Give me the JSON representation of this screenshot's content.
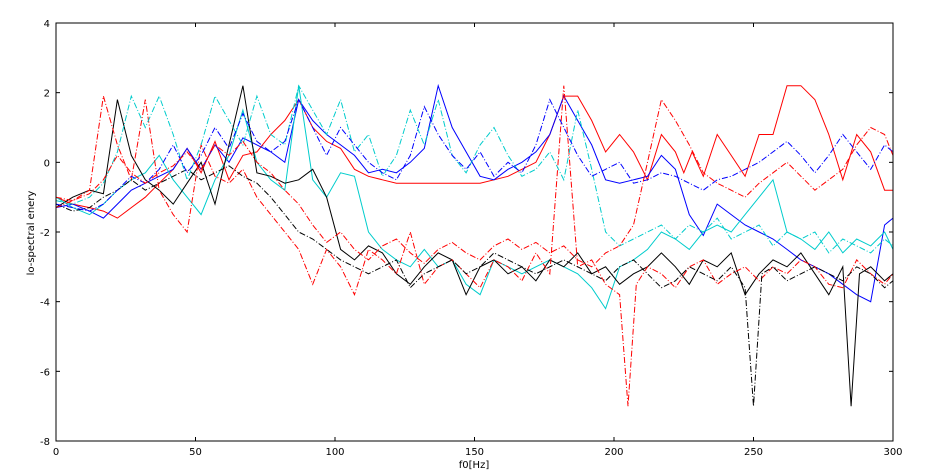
{
  "chart_data": {
    "type": "line",
    "title": "",
    "xlabel": "f0[Hz]",
    "ylabel": "lo-spectral enery",
    "xlim": [
      0,
      300
    ],
    "ylim": [
      -8,
      4
    ],
    "xticks": [
      0,
      50,
      100,
      150,
      200,
      250,
      300
    ],
    "yticks": [
      4,
      2,
      0,
      -2,
      -4,
      -6,
      -8
    ],
    "grid": false,
    "legend": "none",
    "series": [
      {
        "color": "#ff0000",
        "style": "solid",
        "x": [
          0,
          6,
          12,
          17,
          22,
          27,
          32,
          37,
          42,
          47,
          52,
          57,
          62,
          67,
          72,
          77,
          82,
          87,
          92,
          97,
          102,
          107,
          112,
          117,
          122,
          127,
          132,
          137,
          142,
          147,
          152,
          157,
          162,
          167,
          172,
          177,
          182,
          187,
          192,
          197,
          202,
          207,
          212,
          217,
          222,
          225,
          228,
          232,
          237,
          242,
          247,
          252,
          257,
          262,
          267,
          272,
          277,
          282,
          287,
          292,
          297,
          300
        ],
        "values": [
          -1.0,
          -1.2,
          -1.3,
          -1.4,
          -1.6,
          -1.3,
          -1.0,
          -0.6,
          -0.2,
          0.4,
          -0.3,
          0.6,
          -0.5,
          0.2,
          0.3,
          0.8,
          1.2,
          1.8,
          1.0,
          0.6,
          0.4,
          -0.2,
          -0.4,
          -0.5,
          -0.6,
          -0.6,
          -0.6,
          -0.6,
          -0.6,
          -0.6,
          -0.6,
          -0.5,
          -0.4,
          -0.2,
          0.0,
          0.8,
          1.9,
          1.9,
          1.2,
          0.3,
          0.8,
          0.3,
          -0.5,
          0.8,
          0.3,
          -0.3,
          0.3,
          -0.4,
          0.8,
          0.2,
          -0.4,
          0.8,
          0.8,
          2.2,
          2.2,
          1.8,
          0.8,
          -0.5,
          0.8,
          0.3,
          -0.8,
          -0.8
        ]
      },
      {
        "color": "#0000ff",
        "style": "solid",
        "x": [
          0,
          6,
          12,
          17,
          22,
          27,
          32,
          37,
          42,
          47,
          52,
          57,
          62,
          67,
          72,
          77,
          82,
          87,
          92,
          97,
          102,
          107,
          112,
          117,
          122,
          127,
          132,
          137,
          142,
          147,
          152,
          157,
          162,
          167,
          172,
          177,
          182,
          187,
          192,
          197,
          202,
          207,
          212,
          217,
          222,
          227,
          232,
          237,
          242,
          247,
          252,
          257,
          262,
          267,
          272,
          277,
          282,
          287,
          292,
          297,
          300
        ],
        "values": [
          -1.3,
          -1.2,
          -1.4,
          -1.6,
          -1.2,
          -0.8,
          -0.6,
          -0.4,
          -0.2,
          0.4,
          -0.2,
          0.5,
          0.0,
          0.7,
          0.5,
          0.3,
          0.0,
          1.8,
          1.2,
          0.8,
          0.5,
          0.2,
          -0.3,
          -0.2,
          -0.3,
          0.0,
          0.4,
          2.2,
          1.0,
          0.3,
          -0.4,
          -0.5,
          -0.2,
          0.0,
          0.3,
          0.8,
          1.9,
          1.2,
          0.5,
          -0.5,
          -0.6,
          -0.5,
          -0.4,
          0.2,
          -0.2,
          -1.5,
          -2.1,
          -1.2,
          -1.5,
          -1.8,
          -2.0,
          -2.2,
          -2.5,
          -2.8,
          -3.0,
          -3.2,
          -3.5,
          -3.8,
          -4.0,
          -1.8,
          -1.6
        ]
      },
      {
        "color": "#00cccc",
        "style": "solid",
        "x": [
          0,
          6,
          12,
          17,
          22,
          27,
          32,
          37,
          42,
          47,
          52,
          57,
          62,
          67,
          72,
          77,
          82,
          87,
          92,
          97,
          102,
          107,
          112,
          117,
          122,
          127,
          132,
          137,
          142,
          147,
          152,
          157,
          162,
          167,
          172,
          177,
          182,
          187,
          192,
          197,
          202,
          207,
          212,
          217,
          222,
          227,
          232,
          237,
          242,
          247,
          252,
          257,
          262,
          267,
          272,
          277,
          282,
          287,
          292,
          297,
          300
        ],
        "values": [
          -1.0,
          -1.3,
          -1.5,
          -1.2,
          -0.8,
          -0.5,
          -0.3,
          0.2,
          -0.5,
          -1.0,
          -1.5,
          -0.5,
          0.2,
          1.5,
          0.0,
          -0.5,
          -0.8,
          2.2,
          -0.5,
          -1.0,
          -0.3,
          -0.4,
          -2.0,
          -2.5,
          -2.8,
          -3.0,
          -2.5,
          -3.0,
          -2.8,
          -3.5,
          -3.8,
          -2.8,
          -3.0,
          -3.2,
          -3.0,
          -2.8,
          -3.0,
          -3.2,
          -3.6,
          -4.2,
          -3.0,
          -2.8,
          -2.5,
          -2.0,
          -2.2,
          -2.5,
          -2.0,
          -1.8,
          -2.0,
          -1.5,
          -1.0,
          -0.5,
          -2.0,
          -2.2,
          -2.5,
          -2.0,
          -2.6,
          -2.2,
          -2.4,
          -2.0,
          -2.5
        ]
      },
      {
        "color": "#000000",
        "style": "solid",
        "x": [
          0,
          6,
          12,
          17,
          22,
          27,
          32,
          37,
          42,
          47,
          52,
          57,
          62,
          67,
          72,
          77,
          82,
          87,
          92,
          97,
          102,
          107,
          112,
          117,
          122,
          127,
          132,
          137,
          142,
          147,
          152,
          157,
          162,
          167,
          172,
          177,
          182,
          187,
          192,
          197,
          202,
          207,
          212,
          217,
          222,
          227,
          232,
          237,
          242,
          247,
          252,
          257,
          262,
          267,
          272,
          277,
          282,
          285,
          288,
          292,
          297,
          300
        ],
        "values": [
          -1.3,
          -1.0,
          -0.8,
          -0.9,
          1.8,
          0.2,
          -0.5,
          -0.8,
          -1.2,
          -0.6,
          0.0,
          -1.2,
          0.5,
          2.2,
          -0.3,
          -0.4,
          -0.6,
          -0.5,
          -0.2,
          -1.0,
          -2.5,
          -2.8,
          -2.4,
          -2.6,
          -3.2,
          -3.5,
          -3.0,
          -2.6,
          -2.8,
          -3.8,
          -3.0,
          -2.8,
          -3.2,
          -3.0,
          -3.4,
          -2.8,
          -3.0,
          -2.6,
          -3.2,
          -3.0,
          -3.5,
          -3.2,
          -3.0,
          -2.6,
          -3.0,
          -3.5,
          -2.8,
          -3.0,
          -2.6,
          -3.8,
          -3.2,
          -2.8,
          -3.0,
          -2.6,
          -3.2,
          -3.8,
          -3.0,
          -7.0,
          -3.2,
          -3.0,
          -3.4,
          -3.2
        ]
      },
      {
        "color": "#ff0000",
        "style": "dashdot",
        "x": [
          0,
          6,
          12,
          17,
          22,
          27,
          32,
          37,
          42,
          47,
          52,
          57,
          62,
          67,
          72,
          77,
          82,
          87,
          92,
          97,
          102,
          107,
          112,
          117,
          122,
          127,
          132,
          137,
          142,
          147,
          152,
          157,
          162,
          167,
          172,
          177,
          182,
          187,
          192,
          197,
          202,
          205,
          208,
          212,
          217,
          222,
          227,
          232,
          237,
          242,
          247,
          252,
          257,
          262,
          267,
          272,
          277,
          282,
          287,
          292,
          297,
          300
        ],
        "values": [
          -1.0,
          -1.1,
          -0.8,
          1.9,
          0.5,
          -0.5,
          1.8,
          -0.8,
          -1.5,
          -2.0,
          0.5,
          -0.4,
          -0.6,
          -0.2,
          -1.0,
          -1.5,
          -2.0,
          -2.5,
          -3.5,
          -2.5,
          -3.0,
          -3.8,
          -2.5,
          -2.8,
          -3.2,
          -2.0,
          -3.5,
          -3.0,
          -2.8,
          -3.2,
          -3.6,
          -2.8,
          -3.0,
          -3.4,
          -2.6,
          -3.2,
          2.2,
          -3.0,
          -2.8,
          -3.5,
          -3.8,
          -7.0,
          -3.5,
          -3.0,
          -3.2,
          -3.6,
          -3.0,
          -2.8,
          -3.5,
          -3.2,
          -3.0,
          -3.4,
          -3.0,
          -3.2,
          -2.8,
          -3.0,
          -3.5,
          -3.6,
          -2.8,
          -3.2,
          -3.5,
          -3.2
        ]
      },
      {
        "color": "#000000",
        "style": "dashdot",
        "x": [
          0,
          6,
          12,
          17,
          22,
          27,
          32,
          37,
          42,
          47,
          52,
          57,
          62,
          67,
          72,
          77,
          82,
          87,
          92,
          97,
          102,
          107,
          112,
          117,
          122,
          127,
          132,
          137,
          142,
          147,
          152,
          157,
          162,
          167,
          172,
          177,
          182,
          187,
          192,
          197,
          202,
          207,
          212,
          217,
          222,
          227,
          232,
          237,
          242,
          247,
          250,
          253,
          257,
          262,
          267,
          272,
          277,
          282,
          287,
          292,
          297,
          300
        ],
        "values": [
          -1.2,
          -1.4,
          -1.3,
          -1.0,
          -0.8,
          -0.5,
          -0.8,
          -0.6,
          -0.4,
          -0.2,
          -0.5,
          -0.3,
          -0.1,
          -0.4,
          -0.6,
          -1.0,
          -1.5,
          -2.0,
          -2.2,
          -2.5,
          -2.8,
          -3.0,
          -3.2,
          -3.0,
          -2.8,
          -3.6,
          -3.2,
          -3.0,
          -2.8,
          -3.2,
          -3.0,
          -2.6,
          -2.8,
          -3.0,
          -3.2,
          -3.0,
          -2.8,
          -3.0,
          -3.2,
          -3.4,
          -3.0,
          -2.8,
          -3.2,
          -3.6,
          -3.4,
          -3.0,
          -3.2,
          -3.4,
          -3.0,
          -3.6,
          -7.0,
          -3.2,
          -3.0,
          -3.4,
          -3.2,
          -3.0,
          -3.2,
          -3.4,
          -3.0,
          -3.2,
          -3.6,
          -3.4
        ]
      },
      {
        "color": "#00cccc",
        "style": "dashdot",
        "x": [
          0,
          6,
          12,
          17,
          22,
          27,
          32,
          37,
          42,
          47,
          52,
          57,
          62,
          67,
          72,
          77,
          82,
          87,
          92,
          97,
          102,
          107,
          112,
          117,
          122,
          127,
          132,
          137,
          142,
          147,
          152,
          157,
          162,
          167,
          172,
          177,
          182,
          187,
          192,
          197,
          202,
          207,
          212,
          217,
          222,
          227,
          232,
          237,
          242,
          247,
          252,
          257,
          262,
          267,
          272,
          277,
          282,
          287,
          292,
          297,
          300
        ],
        "values": [
          -1.1,
          -1.2,
          -1.0,
          -0.6,
          0.3,
          1.9,
          1.0,
          1.9,
          0.8,
          -0.5,
          0.5,
          1.9,
          1.2,
          0.5,
          1.9,
          0.8,
          0.5,
          2.2,
          1.5,
          0.8,
          1.8,
          0.3,
          0.8,
          -0.4,
          0.2,
          1.5,
          0.5,
          1.8,
          0.2,
          -0.3,
          0.5,
          1.0,
          0.2,
          -0.4,
          -0.2,
          0.3,
          -0.5,
          1.5,
          -0.2,
          -2.0,
          -2.4,
          -2.2,
          -2.0,
          -1.8,
          -2.2,
          -1.8,
          -2.0,
          -1.6,
          -2.2,
          -2.0,
          -1.8,
          -2.4,
          -2.0,
          -2.2,
          -2.0,
          -2.6,
          -2.2,
          -2.4,
          -2.6,
          -2.2,
          -2.4
        ]
      },
      {
        "color": "#0000ff",
        "style": "dashdot",
        "x": [
          0,
          6,
          12,
          17,
          22,
          27,
          32,
          37,
          42,
          47,
          52,
          57,
          62,
          67,
          72,
          77,
          82,
          87,
          92,
          97,
          102,
          107,
          112,
          117,
          122,
          127,
          132,
          137,
          142,
          147,
          152,
          157,
          162,
          167,
          172,
          177,
          182,
          187,
          192,
          197,
          202,
          207,
          212,
          217,
          222,
          227,
          232,
          237,
          242,
          247,
          252,
          257,
          262,
          267,
          272,
          277,
          282,
          287,
          292,
          297,
          300
        ],
        "values": [
          -1.2,
          -1.3,
          -1.4,
          -1.2,
          -0.8,
          -0.4,
          -0.6,
          -0.2,
          0.5,
          -0.3,
          0.2,
          1.0,
          0.4,
          1.4,
          0.6,
          0.3,
          0.6,
          1.8,
          1.0,
          0.2,
          1.0,
          0.5,
          0.0,
          -0.3,
          -0.5,
          0.2,
          1.6,
          0.8,
          0.2,
          -0.2,
          0.3,
          -0.4,
          0.0,
          -0.3,
          0.5,
          1.8,
          1.0,
          0.2,
          -0.4,
          -0.2,
          0.0,
          -0.6,
          -0.5,
          -0.3,
          -0.4,
          -0.6,
          -0.8,
          -0.5,
          -0.4,
          -0.2,
          0.0,
          0.3,
          0.6,
          0.2,
          -0.3,
          0.2,
          0.8,
          0.3,
          -0.2,
          0.5,
          0.3
        ]
      },
      {
        "color": "#ff0000",
        "style": "dashdot",
        "x": [
          0,
          6,
          12,
          17,
          22,
          27,
          32,
          37,
          42,
          47,
          52,
          57,
          62,
          67,
          72,
          77,
          82,
          87,
          92,
          97,
          102,
          107,
          112,
          117,
          122,
          127,
          132,
          137,
          142,
          147,
          152,
          157,
          162,
          167,
          172,
          177,
          182,
          187,
          192,
          197,
          202,
          207,
          212,
          217,
          222,
          227,
          232,
          237,
          242,
          247,
          252,
          257,
          262,
          267,
          272,
          277,
          282,
          287,
          292,
          297,
          300
        ],
        "values": [
          -1.3,
          -1.1,
          -0.9,
          -0.5,
          0.2,
          -0.3,
          -0.6,
          -0.3,
          -0.1,
          0.3,
          -0.2,
          0.5,
          0.2,
          0.6,
          0.0,
          -0.3,
          -0.8,
          -1.2,
          -1.8,
          -2.3,
          -2.0,
          -2.5,
          -2.8,
          -2.4,
          -2.2,
          -2.6,
          -2.9,
          -2.5,
          -2.3,
          -2.6,
          -2.8,
          -2.4,
          -2.2,
          -2.5,
          -2.3,
          -2.6,
          -2.4,
          -2.8,
          -3.0,
          -2.6,
          -2.4,
          -1.8,
          0.0,
          1.8,
          1.2,
          0.5,
          -0.3,
          -0.6,
          -0.8,
          -1.0,
          -0.6,
          -0.3,
          0.0,
          -0.4,
          -0.8,
          -0.5,
          -0.2,
          0.5,
          1.0,
          0.8,
          0.2
        ]
      }
    ]
  }
}
